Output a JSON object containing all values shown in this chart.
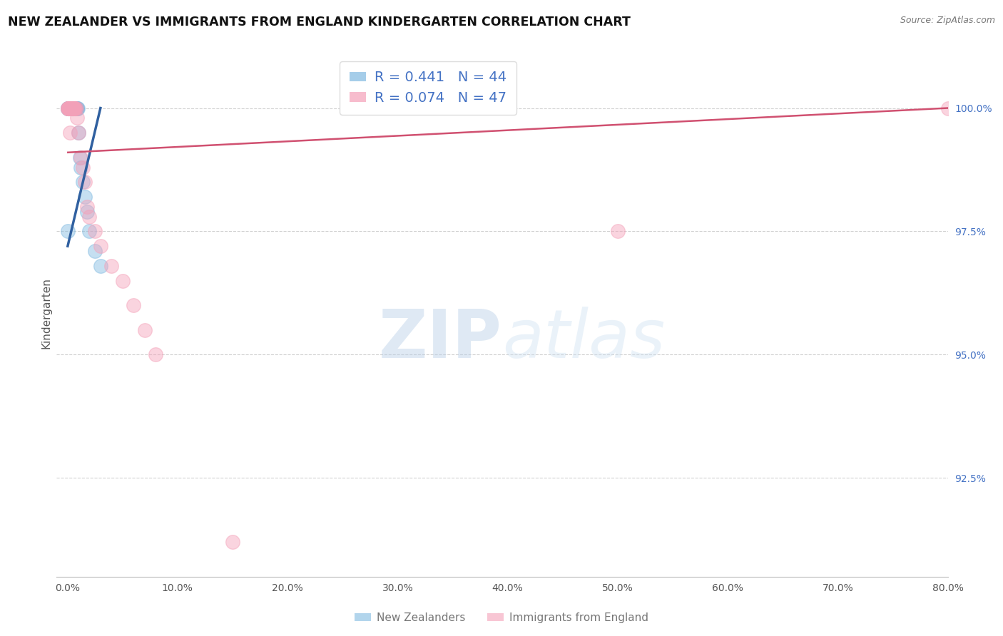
{
  "title": "NEW ZEALANDER VS IMMIGRANTS FROM ENGLAND KINDERGARTEN CORRELATION CHART",
  "source": "Source: ZipAtlas.com",
  "ylabel": "Kindergarten",
  "xlim": [
    -1.0,
    80.0
  ],
  "ylim": [
    90.5,
    101.2
  ],
  "yticks": [
    92.5,
    95.0,
    97.5,
    100.0
  ],
  "xticks": [
    0.0,
    10.0,
    20.0,
    30.0,
    40.0,
    50.0,
    60.0,
    70.0,
    80.0
  ],
  "nz_R": 0.441,
  "nz_N": 44,
  "eng_R": 0.074,
  "eng_N": 47,
  "nz_color": "#7fb9e0",
  "eng_color": "#f4a0b8",
  "nz_line_color": "#3060a0",
  "eng_line_color": "#d05070",
  "background_color": "#ffffff",
  "nz_x": [
    0.05,
    0.08,
    0.1,
    0.12,
    0.15,
    0.18,
    0.2,
    0.22,
    0.25,
    0.28,
    0.3,
    0.32,
    0.35,
    0.38,
    0.4,
    0.42,
    0.45,
    0.48,
    0.5,
    0.52,
    0.55,
    0.58,
    0.6,
    0.65,
    0.68,
    0.7,
    0.75,
    0.8,
    0.85,
    0.9,
    0.95,
    1.0,
    1.1,
    1.2,
    1.4,
    1.6,
    1.8,
    2.0,
    2.5,
    3.0,
    0.06,
    0.09,
    0.14,
    0.02
  ],
  "nz_y": [
    100.0,
    100.0,
    100.0,
    100.0,
    100.0,
    100.0,
    100.0,
    100.0,
    100.0,
    100.0,
    100.0,
    100.0,
    100.0,
    100.0,
    100.0,
    100.0,
    100.0,
    100.0,
    100.0,
    100.0,
    100.0,
    100.0,
    100.0,
    100.0,
    100.0,
    100.0,
    100.0,
    100.0,
    100.0,
    100.0,
    100.0,
    99.5,
    99.0,
    98.8,
    98.5,
    98.2,
    97.9,
    97.5,
    97.1,
    96.8,
    100.0,
    100.0,
    100.0,
    97.5
  ],
  "eng_x": [
    0.05,
    0.08,
    0.1,
    0.12,
    0.15,
    0.18,
    0.2,
    0.22,
    0.25,
    0.28,
    0.3,
    0.32,
    0.35,
    0.38,
    0.4,
    0.42,
    0.45,
    0.48,
    0.5,
    0.52,
    0.55,
    0.58,
    0.6,
    0.65,
    0.7,
    0.8,
    0.9,
    1.0,
    1.2,
    1.4,
    1.6,
    1.8,
    2.0,
    2.5,
    3.0,
    4.0,
    5.0,
    6.0,
    7.0,
    8.0,
    0.06,
    0.09,
    0.14,
    50.0,
    15.0,
    80.0,
    0.25
  ],
  "eng_y": [
    100.0,
    100.0,
    100.0,
    100.0,
    100.0,
    100.0,
    100.0,
    100.0,
    100.0,
    100.0,
    100.0,
    100.0,
    100.0,
    100.0,
    100.0,
    100.0,
    100.0,
    100.0,
    100.0,
    100.0,
    100.0,
    100.0,
    100.0,
    100.0,
    100.0,
    100.0,
    99.8,
    99.5,
    99.0,
    98.8,
    98.5,
    98.0,
    97.8,
    97.5,
    97.2,
    96.8,
    96.5,
    96.0,
    95.5,
    95.0,
    100.0,
    100.0,
    100.0,
    97.5,
    91.2,
    100.0,
    99.5
  ],
  "nz_trendline_x": [
    0.02,
    3.0
  ],
  "nz_trendline_y": [
    97.2,
    100.0
  ],
  "eng_trendline_x": [
    0.05,
    80.0
  ],
  "eng_trendline_y": [
    99.1,
    100.0
  ]
}
